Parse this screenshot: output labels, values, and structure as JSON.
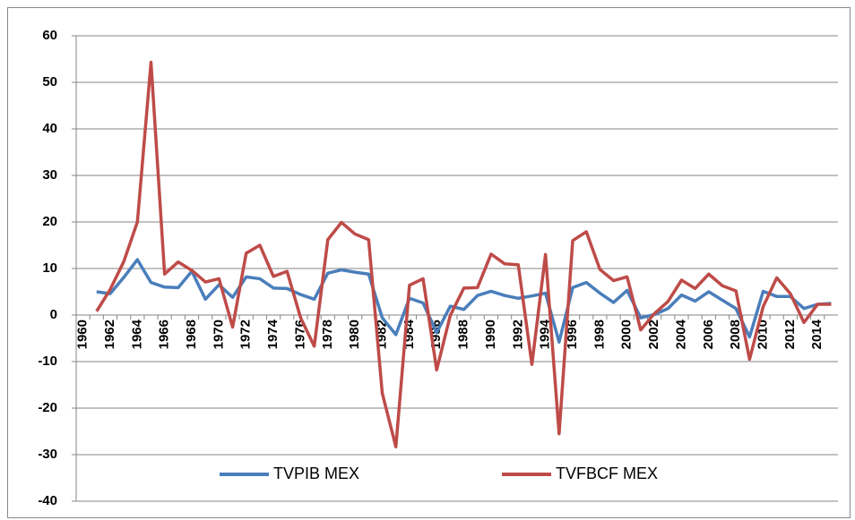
{
  "chart_data": {
    "type": "line",
    "categories": [
      "1960",
      null,
      "1962",
      null,
      "1964",
      null,
      "1966",
      null,
      "1968",
      null,
      "1970",
      null,
      "1972",
      null,
      "1974",
      null,
      "1976",
      null,
      "1978",
      null,
      "1980",
      null,
      "1982",
      null,
      "1984",
      null,
      "1986",
      null,
      "1988",
      null,
      "1990",
      null,
      "1992",
      null,
      "1994",
      null,
      "1996",
      null,
      "1998",
      null,
      "2000",
      null,
      "2002",
      null,
      "2004",
      null,
      "2006",
      null,
      "2008",
      null,
      "2010",
      null,
      "2012",
      null,
      "2014",
      null
    ],
    "series": [
      {
        "name": "TVPIB MEX",
        "color": "#4a7ebb",
        "values": [
          null,
          5.0,
          4.6,
          8.1,
          11.9,
          7.0,
          6.0,
          5.9,
          9.4,
          3.4,
          6.5,
          3.8,
          8.2,
          7.8,
          5.8,
          5.7,
          4.4,
          3.4,
          9.0,
          9.7,
          9.2,
          8.8,
          -0.6,
          -4.2,
          3.6,
          2.6,
          -3.8,
          1.9,
          1.2,
          4.2,
          5.1,
          4.2,
          3.6,
          4.1,
          4.7,
          -5.8,
          5.9,
          7.0,
          4.7,
          2.7,
          5.3,
          -0.6,
          0.1,
          1.4,
          4.3,
          3.0,
          5.0,
          3.2,
          1.4,
          -4.7,
          5.1,
          4.0,
          4.0,
          1.4,
          2.3,
          2.5
        ]
      },
      {
        "name": "TVFBCF MEX",
        "color": "#be4b48",
        "values": [
          null,
          0.8,
          5.5,
          11.5,
          20.0,
          54.3,
          8.8,
          11.4,
          9.6,
          7.1,
          7.8,
          -2.6,
          13.3,
          15.0,
          8.3,
          9.4,
          -0.6,
          -6.7,
          16.2,
          19.9,
          17.4,
          16.2,
          -16.8,
          -28.3,
          6.4,
          7.8,
          -11.8,
          -0.1,
          5.8,
          5.9,
          13.1,
          11.0,
          10.8,
          -10.6,
          13.0,
          -25.5,
          16.0,
          17.9,
          9.8,
          7.4,
          8.2,
          -3.2,
          0.3,
          2.9,
          7.5,
          5.7,
          8.8,
          6.3,
          5.2,
          -9.5,
          1.8,
          8.0,
          4.6,
          -1.6,
          2.3,
          2.3
        ]
      }
    ],
    "ylim": [
      -40,
      60
    ],
    "yticks": [
      -40,
      -30,
      -20,
      -10,
      0,
      10,
      20,
      30,
      40,
      50,
      60
    ],
    "grid": true,
    "legend": "bottom"
  }
}
